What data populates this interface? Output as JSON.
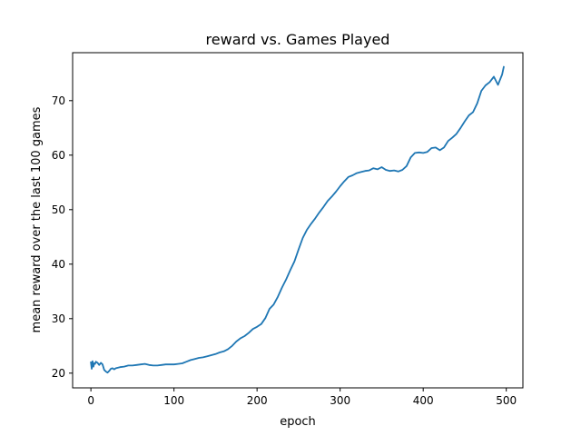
{
  "chart_data": {
    "type": "line",
    "title": "reward vs. Games Played",
    "xlabel": "epoch",
    "ylabel": "mean reward over the last 100 games",
    "xlim": [
      -22,
      520
    ],
    "ylim": [
      17.3,
      78.8
    ],
    "xticks": [
      0,
      100,
      200,
      300,
      400,
      500
    ],
    "yticks": [
      20,
      30,
      40,
      50,
      60,
      70
    ],
    "grid": false,
    "color": "#1f77b4",
    "series": [
      {
        "x": [
          0,
          1,
          2,
          3,
          4,
          5,
          6,
          8,
          10,
          12,
          14,
          16,
          18,
          20,
          22,
          24,
          26,
          28,
          30,
          35,
          40,
          45,
          50,
          55,
          60,
          65,
          70,
          75,
          80,
          85,
          90,
          95,
          100,
          105,
          110,
          115,
          120,
          125,
          130,
          135,
          140,
          145,
          150,
          155,
          160,
          165,
          170,
          175,
          180,
          185,
          190,
          195,
          200,
          205,
          210,
          215,
          220,
          225,
          230,
          235,
          240,
          245,
          250,
          255,
          260,
          265,
          270,
          275,
          280,
          285,
          290,
          295,
          300,
          305,
          310,
          315,
          320,
          325,
          330,
          335,
          340,
          345,
          350,
          355,
          360,
          365,
          370,
          375,
          380,
          385,
          390,
          395,
          400,
          405,
          410,
          415,
          420,
          425,
          430,
          435,
          440,
          445,
          450,
          455,
          460,
          465,
          470,
          475,
          480,
          485,
          490,
          495,
          497
        ],
        "y": [
          22.0,
          20.8,
          22.2,
          21.2,
          21.8,
          21.7,
          22.1,
          21.9,
          21.5,
          21.9,
          21.6,
          20.6,
          20.3,
          20.1,
          20.4,
          20.8,
          20.9,
          20.7,
          20.9,
          21.1,
          21.2,
          21.4,
          21.4,
          21.5,
          21.6,
          21.7,
          21.5,
          21.4,
          21.4,
          21.5,
          21.6,
          21.6,
          21.6,
          21.7,
          21.8,
          22.1,
          22.4,
          22.6,
          22.8,
          22.9,
          23.1,
          23.3,
          23.5,
          23.8,
          24.0,
          24.4,
          25.0,
          25.8,
          26.4,
          26.8,
          27.4,
          28.1,
          28.5,
          29.0,
          30.1,
          31.8,
          32.6,
          34.0,
          35.7,
          37.2,
          38.9,
          40.5,
          42.7,
          44.8,
          46.3,
          47.4,
          48.4,
          49.5,
          50.5,
          51.6,
          52.4,
          53.3,
          54.3,
          55.2,
          56.0,
          56.3,
          56.7,
          56.9,
          57.1,
          57.2,
          57.6,
          57.4,
          57.8,
          57.3,
          57.1,
          57.2,
          57.0,
          57.3,
          58.0,
          59.6,
          60.4,
          60.5,
          60.4,
          60.6,
          61.3,
          61.4,
          60.9,
          61.4,
          62.6,
          63.2,
          63.9,
          65.0,
          66.2,
          67.3,
          67.9,
          69.5,
          71.8,
          72.8,
          73.4,
          74.4,
          72.9,
          74.8,
          76.2
        ]
      }
    ]
  }
}
